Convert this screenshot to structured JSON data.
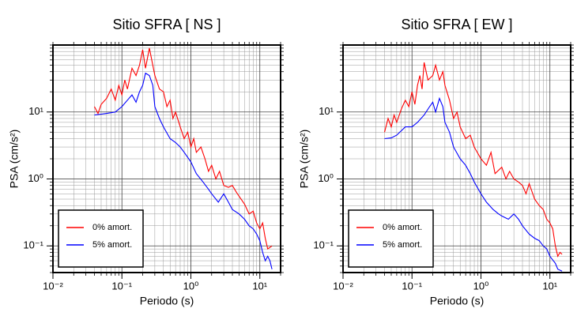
{
  "chart_data": [
    {
      "type": "line",
      "title": "Sitio SFRA [ NS ]",
      "x_label": "Periodo (s)",
      "y_label": "PSA (cm/s²)",
      "log_x": true,
      "log_y": true,
      "grid": true,
      "legend_position": "lower left",
      "xlim": [
        0.01,
        20
      ],
      "ylim": [
        0.04,
        100
      ],
      "xticks": [
        {
          "value": 0.01,
          "label": "10⁻²"
        },
        {
          "value": 0.1,
          "label": "10⁻¹"
        },
        {
          "value": 1,
          "label": "10⁰"
        },
        {
          "value": 10,
          "label": "10¹"
        }
      ],
      "yticks": [
        {
          "value": 0.1,
          "label": "10⁻¹"
        },
        {
          "value": 1,
          "label": "10⁰"
        },
        {
          "value": 10,
          "label": "10¹"
        }
      ],
      "series": [
        {
          "name": "0% amort.",
          "color": "#ff0000",
          "x": [
            0.04,
            0.045,
            0.05,
            0.06,
            0.07,
            0.08,
            0.09,
            0.1,
            0.11,
            0.12,
            0.14,
            0.16,
            0.18,
            0.2,
            0.22,
            0.25,
            0.28,
            0.3,
            0.35,
            0.4,
            0.45,
            0.5,
            0.55,
            0.6,
            0.7,
            0.8,
            0.9,
            1.0,
            1.1,
            1.2,
            1.4,
            1.6,
            1.8,
            2,
            2.3,
            2.6,
            3,
            3.5,
            4,
            4.5,
            5,
            6,
            7,
            8,
            9,
            10,
            11,
            12,
            13,
            15
          ],
          "values": [
            12,
            9.5,
            13,
            16,
            22,
            15,
            25,
            18,
            30,
            22,
            45,
            35,
            50,
            85,
            45,
            90,
            50,
            35,
            22,
            20,
            12,
            15,
            8,
            10,
            6,
            4,
            5,
            3,
            4,
            2.5,
            3,
            2,
            1.3,
            1.6,
            1.0,
            1.3,
            0.8,
            0.75,
            0.8,
            0.65,
            0.55,
            0.42,
            0.3,
            0.33,
            0.22,
            0.18,
            0.22,
            0.13,
            0.09,
            0.1
          ]
        },
        {
          "name": "5% amort.",
          "color": "#0000ff",
          "x": [
            0.04,
            0.06,
            0.08,
            0.1,
            0.12,
            0.14,
            0.16,
            0.18,
            0.2,
            0.22,
            0.25,
            0.28,
            0.3,
            0.35,
            0.4,
            0.5,
            0.6,
            0.7,
            0.8,
            1.0,
            1.2,
            1.5,
            1.8,
            2,
            2.5,
            3,
            3.5,
            4,
            5,
            6,
            7,
            8,
            9,
            10,
            11,
            12,
            13,
            14,
            15
          ],
          "values": [
            9,
            9.5,
            10,
            12,
            15,
            18,
            14,
            20,
            25,
            38,
            35,
            25,
            12,
            8,
            6,
            4,
            3.5,
            3,
            2.5,
            1.8,
            1.2,
            0.9,
            0.7,
            0.6,
            0.45,
            0.6,
            0.45,
            0.35,
            0.3,
            0.25,
            0.2,
            0.18,
            0.15,
            0.12,
            0.08,
            0.06,
            0.07,
            0.06,
            0.045
          ]
        }
      ]
    },
    {
      "type": "line",
      "title": "Sitio SFRA [ EW ]",
      "x_label": "Periodo (s)",
      "y_label": "PSA (cm/s²)",
      "log_x": true,
      "log_y": true,
      "grid": true,
      "legend_position": "lower left",
      "xlim": [
        0.01,
        20
      ],
      "ylim": [
        0.04,
        100
      ],
      "xticks": [
        {
          "value": 0.01,
          "label": "10⁻²"
        },
        {
          "value": 0.1,
          "label": "10⁻¹"
        },
        {
          "value": 1,
          "label": "10⁰"
        },
        {
          "value": 10,
          "label": "10¹"
        }
      ],
      "yticks": [
        {
          "value": 0.1,
          "label": "10⁻¹"
        },
        {
          "value": 1,
          "label": "10⁰"
        },
        {
          "value": 10,
          "label": "10¹"
        }
      ],
      "series": [
        {
          "name": "0% amort.",
          "color": "#ff0000",
          "x": [
            0.04,
            0.045,
            0.05,
            0.055,
            0.06,
            0.07,
            0.08,
            0.09,
            0.1,
            0.11,
            0.12,
            0.13,
            0.14,
            0.15,
            0.17,
            0.2,
            0.22,
            0.25,
            0.28,
            0.3,
            0.35,
            0.4,
            0.45,
            0.5,
            0.6,
            0.7,
            0.8,
            1.0,
            1.2,
            1.4,
            1.6,
            2,
            2.3,
            2.6,
            3,
            3.5,
            4,
            4.5,
            5,
            6,
            7,
            8,
            9,
            10,
            11,
            12,
            13,
            14,
            15
          ],
          "values": [
            5,
            8,
            6,
            9,
            7,
            11,
            15,
            12,
            20,
            13,
            25,
            35,
            22,
            55,
            30,
            35,
            50,
            30,
            40,
            25,
            15,
            8,
            10,
            6,
            4,
            4.5,
            3,
            2,
            1.6,
            2.5,
            1.2,
            1.5,
            1.0,
            1.3,
            1.0,
            0.9,
            0.8,
            0.6,
            0.85,
            0.5,
            0.4,
            0.35,
            0.25,
            0.22,
            0.18,
            0.1,
            0.07,
            0.08,
            0.075
          ]
        },
        {
          "name": "5% amort.",
          "color": "#0000ff",
          "x": [
            0.04,
            0.05,
            0.06,
            0.08,
            0.1,
            0.12,
            0.15,
            0.18,
            0.2,
            0.22,
            0.25,
            0.28,
            0.3,
            0.35,
            0.4,
            0.5,
            0.6,
            0.7,
            0.8,
            1.0,
            1.2,
            1.5,
            1.8,
            2,
            2.5,
            3,
            3.5,
            4,
            5,
            6,
            7,
            8,
            9,
            10,
            12,
            13,
            15
          ],
          "values": [
            4,
            4.1,
            4.5,
            6,
            6,
            7,
            9,
            12,
            14,
            10,
            16,
            12,
            7,
            5,
            3,
            2,
            1.6,
            1.2,
            0.9,
            0.6,
            0.45,
            0.35,
            0.3,
            0.28,
            0.25,
            0.3,
            0.25,
            0.2,
            0.15,
            0.13,
            0.12,
            0.1,
            0.09,
            0.07,
            0.055,
            0.045,
            0.042
          ]
        }
      ]
    }
  ]
}
